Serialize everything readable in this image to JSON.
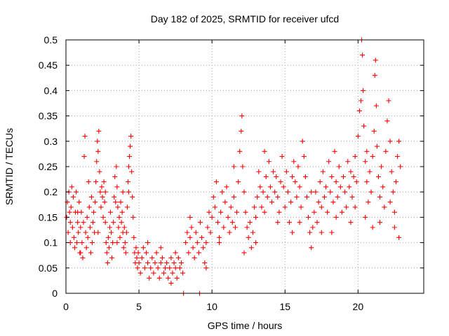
{
  "chart_data": {
    "type": "scatter",
    "title": "Day 182 of 2025, SRMTID for receiver ufcd",
    "xlabel": "GPS time / hours",
    "ylabel": "SRMTID / TECUs",
    "xlim": [
      0,
      24.5
    ],
    "ylim": [
      0,
      0.5
    ],
    "xticks": [
      0,
      5,
      10,
      15,
      20
    ],
    "xtick_labels": [
      "0",
      "5",
      "10",
      "15",
      "20"
    ],
    "yticks": [
      0,
      0.05,
      0.1,
      0.15,
      0.2,
      0.25,
      0.3,
      0.35,
      0.4,
      0.45,
      0.5
    ],
    "ytick_labels": [
      "0",
      "0.05",
      "0.1",
      "0.15",
      "0.2",
      "0.25",
      "0.3",
      "0.35",
      "0.4",
      "0.45",
      "0.5"
    ],
    "grid": true,
    "marker": "+",
    "color": "#ff0000",
    "series": [
      {
        "name": "SRMTID",
        "points": [
          [
            0.05,
            0.15
          ],
          [
            0.1,
            0.18
          ],
          [
            0.15,
            0.12
          ],
          [
            0.2,
            0.2
          ],
          [
            0.25,
            0.16
          ],
          [
            0.3,
            0.14
          ],
          [
            0.35,
            0.17
          ],
          [
            0.4,
            0.21
          ],
          [
            0.45,
            0.13
          ],
          [
            0.5,
            0.19
          ],
          [
            0.55,
            0.11
          ],
          [
            0.6,
            0.09
          ],
          [
            0.65,
            0.16
          ],
          [
            0.7,
            0.2
          ],
          [
            0.75,
            0.1
          ],
          [
            0.8,
            0.14
          ],
          [
            0.85,
            0.12
          ],
          [
            0.9,
            0.18
          ],
          [
            0.95,
            0.08
          ],
          [
            1.0,
            0.13
          ],
          [
            1.05,
            0.16
          ],
          [
            1.1,
            0.1
          ],
          [
            1.15,
            0.07
          ],
          [
            1.2,
            0.14
          ],
          [
            1.25,
            0.27
          ],
          [
            1.3,
            0.31
          ],
          [
            1.35,
            0.12
          ],
          [
            1.4,
            0.09
          ],
          [
            1.45,
            0.15
          ],
          [
            1.5,
            0.11
          ],
          [
            1.55,
            0.22
          ],
          [
            1.6,
            0.17
          ],
          [
            1.65,
            0.13
          ],
          [
            1.7,
            0.08
          ],
          [
            1.75,
            0.19
          ],
          [
            1.8,
            0.1
          ],
          [
            1.85,
            0.14
          ],
          [
            1.9,
            0.16
          ],
          [
            1.95,
            0.12
          ],
          [
            2.0,
            0.18
          ],
          [
            2.05,
            0.22
          ],
          [
            2.1,
            0.26
          ],
          [
            2.15,
            0.3
          ],
          [
            2.2,
            0.28
          ],
          [
            2.25,
            0.32
          ],
          [
            2.3,
            0.24
          ],
          [
            2.35,
            0.2
          ],
          [
            2.4,
            0.17
          ],
          [
            2.45,
            0.21
          ],
          [
            2.5,
            0.19
          ],
          [
            2.55,
            0.15
          ],
          [
            2.6,
            0.22
          ],
          [
            2.65,
            0.18
          ],
          [
            2.7,
            0.14
          ],
          [
            2.75,
            0.1
          ],
          [
            2.8,
            0.08
          ],
          [
            2.85,
            0.06
          ],
          [
            2.9,
            0.11
          ],
          [
            2.95,
            0.09
          ],
          [
            3.0,
            0.13
          ],
          [
            3.05,
            0.16
          ],
          [
            3.1,
            0.12
          ],
          [
            3.15,
            0.07
          ],
          [
            3.2,
            0.1
          ],
          [
            3.25,
            0.14
          ],
          [
            3.3,
            0.19
          ],
          [
            3.35,
            0.23
          ],
          [
            3.4,
            0.18
          ],
          [
            3.45,
            0.25
          ],
          [
            3.5,
            0.21
          ],
          [
            3.55,
            0.17
          ],
          [
            3.6,
            0.13
          ],
          [
            3.65,
            0.15
          ],
          [
            3.7,
            0.11
          ],
          [
            3.75,
            0.18
          ],
          [
            3.8,
            0.14
          ],
          [
            3.85,
            0.16
          ],
          [
            3.9,
            0.12
          ],
          [
            3.95,
            0.09
          ],
          [
            4.0,
            0.13
          ],
          [
            4.05,
            0.1
          ],
          [
            4.1,
            0.08
          ],
          [
            4.15,
            0.12
          ],
          [
            4.2,
            0.17
          ],
          [
            4.25,
            0.22
          ],
          [
            4.3,
            0.2
          ],
          [
            4.35,
            0.27
          ],
          [
            4.4,
            0.29
          ],
          [
            4.45,
            0.31
          ],
          [
            4.5,
            0.24
          ],
          [
            4.55,
            0.19
          ],
          [
            4.6,
            0.15
          ],
          [
            4.65,
            0.11
          ],
          [
            4.7,
            0.08
          ],
          [
            4.75,
            0.06
          ],
          [
            4.8,
            0.09
          ],
          [
            4.85,
            0.07
          ],
          [
            4.9,
            0.05
          ],
          [
            4.95,
            0.08
          ],
          [
            5.0,
            0.06
          ],
          [
            5.1,
            0.04
          ],
          [
            5.2,
            0.07
          ],
          [
            5.3,
            0.09
          ],
          [
            5.4,
            0.05
          ],
          [
            5.5,
            0.08
          ],
          [
            5.6,
            0.06
          ],
          [
            5.7,
            0.03
          ],
          [
            5.8,
            0.05
          ],
          [
            5.9,
            0.07
          ],
          [
            6.0,
            0.04
          ],
          [
            6.1,
            0.06
          ],
          [
            6.2,
            0.08
          ],
          [
            6.3,
            0.05
          ],
          [
            6.4,
            0.03
          ],
          [
            6.5,
            0.06
          ],
          [
            6.6,
            0.07
          ],
          [
            6.7,
            0.04
          ],
          [
            6.8,
            0.05
          ],
          [
            6.9,
            0.06
          ],
          [
            7.0,
            0.03
          ],
          [
            7.1,
            0.05
          ],
          [
            7.2,
            0.07
          ],
          [
            7.3,
            0.04
          ],
          [
            7.4,
            0.06
          ],
          [
            7.5,
            0.05
          ],
          [
            7.6,
            0.03
          ],
          [
            7.7,
            0.07
          ],
          [
            7.8,
            0.05
          ],
          [
            7.9,
            0.06
          ],
          [
            8.0,
            0.04
          ],
          [
            8.05,
            0.0
          ],
          [
            8.2,
            0.1
          ],
          [
            8.3,
            0.12
          ],
          [
            8.4,
            0.08
          ],
          [
            8.5,
            0.11
          ],
          [
            8.6,
            0.13
          ],
          [
            8.7,
            0.09
          ],
          [
            8.8,
            0.07
          ],
          [
            8.9,
            0.12
          ],
          [
            9.0,
            0.1
          ],
          [
            9.1,
            0.08
          ],
          [
            9.15,
            0.0
          ],
          [
            9.2,
            0.14
          ],
          [
            9.3,
            0.11
          ],
          [
            9.4,
            0.09
          ],
          [
            9.5,
            0.06
          ],
          [
            9.6,
            0.1
          ],
          [
            9.7,
            0.13
          ],
          [
            9.8,
            0.16
          ],
          [
            9.9,
            0.12
          ],
          [
            10.0,
            0.15
          ],
          [
            10.1,
            0.19
          ],
          [
            10.2,
            0.17
          ],
          [
            10.3,
            0.22
          ],
          [
            10.4,
            0.14
          ],
          [
            10.5,
            0.11
          ],
          [
            10.6,
            0.16
          ],
          [
            10.7,
            0.2
          ],
          [
            10.8,
            0.13
          ],
          [
            10.9,
            0.18
          ],
          [
            11.0,
            0.21
          ],
          [
            11.1,
            0.15
          ],
          [
            11.2,
            0.12
          ],
          [
            11.3,
            0.17
          ],
          [
            11.4,
            0.14
          ],
          [
            11.5,
            0.19
          ],
          [
            11.6,
            0.13
          ],
          [
            11.7,
            0.16
          ],
          [
            11.8,
            0.22
          ],
          [
            11.9,
            0.28
          ],
          [
            12.0,
            0.32
          ],
          [
            12.05,
            0.35
          ],
          [
            12.1,
            0.25
          ],
          [
            12.2,
            0.2
          ],
          [
            12.3,
            0.16
          ],
          [
            12.4,
            0.13
          ],
          [
            12.5,
            0.11
          ],
          [
            12.6,
            0.14
          ],
          [
            12.7,
            0.09
          ],
          [
            12.8,
            0.12
          ],
          [
            12.9,
            0.17
          ],
          [
            13.0,
            0.15
          ],
          [
            13.1,
            0.19
          ],
          [
            13.2,
            0.24
          ],
          [
            13.3,
            0.21
          ],
          [
            13.4,
            0.17
          ],
          [
            13.5,
            0.2
          ],
          [
            13.6,
            0.16
          ],
          [
            13.7,
            0.23
          ],
          [
            13.8,
            0.19
          ],
          [
            13.9,
            0.26
          ],
          [
            14.0,
            0.21
          ],
          [
            14.1,
            0.18
          ],
          [
            14.2,
            0.24
          ],
          [
            14.3,
            0.2
          ],
          [
            14.4,
            0.23
          ],
          [
            14.5,
            0.19
          ],
          [
            14.6,
            0.16
          ],
          [
            14.7,
            0.22
          ],
          [
            14.8,
            0.27
          ],
          [
            14.9,
            0.21
          ],
          [
            15.0,
            0.17
          ],
          [
            15.1,
            0.24
          ],
          [
            15.2,
            0.2
          ],
          [
            15.3,
            0.14
          ],
          [
            15.4,
            0.18
          ],
          [
            15.5,
            0.23
          ],
          [
            15.6,
            0.26
          ],
          [
            15.7,
            0.22
          ],
          [
            15.8,
            0.19
          ],
          [
            15.9,
            0.25
          ],
          [
            16.0,
            0.21
          ],
          [
            16.1,
            0.17
          ],
          [
            16.2,
            0.3
          ],
          [
            16.3,
            0.27
          ],
          [
            16.4,
            0.23
          ],
          [
            16.5,
            0.19
          ],
          [
            16.6,
            0.15
          ],
          [
            16.7,
            0.12
          ],
          [
            16.8,
            0.09
          ],
          [
            16.9,
            0.13
          ],
          [
            17.0,
            0.16
          ],
          [
            17.1,
            0.2
          ],
          [
            17.2,
            0.14
          ],
          [
            17.3,
            0.18
          ],
          [
            17.4,
            0.22
          ],
          [
            17.5,
            0.17
          ],
          [
            17.6,
            0.24
          ],
          [
            17.7,
            0.19
          ],
          [
            17.8,
            0.21
          ],
          [
            17.9,
            0.16
          ],
          [
            18.0,
            0.26
          ],
          [
            18.1,
            0.2
          ],
          [
            18.2,
            0.23
          ],
          [
            18.3,
            0.18
          ],
          [
            18.4,
            0.28
          ],
          [
            18.5,
            0.22
          ],
          [
            18.6,
            0.19
          ],
          [
            18.7,
            0.25
          ],
          [
            18.8,
            0.21
          ],
          [
            18.9,
            0.16
          ],
          [
            19.0,
            0.23
          ],
          [
            19.1,
            0.2
          ],
          [
            19.2,
            0.17
          ],
          [
            19.3,
            0.26
          ],
          [
            19.4,
            0.21
          ],
          [
            19.5,
            0.14
          ],
          [
            19.6,
            0.19
          ],
          [
            19.7,
            0.23
          ],
          [
            19.8,
            0.27
          ],
          [
            19.9,
            0.22
          ],
          [
            20.0,
            0.31
          ],
          [
            20.1,
            0.36
          ],
          [
            20.2,
            0.38
          ],
          [
            20.25,
            0.5
          ],
          [
            20.3,
            0.47
          ],
          [
            20.35,
            0.4
          ],
          [
            20.4,
            0.33
          ],
          [
            20.5,
            0.26
          ],
          [
            20.6,
            0.22
          ],
          [
            20.7,
            0.18
          ],
          [
            20.8,
            0.24
          ],
          [
            20.9,
            0.2
          ],
          [
            21.0,
            0.27
          ],
          [
            21.1,
            0.32
          ],
          [
            21.15,
            0.43
          ],
          [
            21.2,
            0.46
          ],
          [
            21.25,
            0.37
          ],
          [
            21.3,
            0.29
          ],
          [
            21.4,
            0.23
          ],
          [
            21.5,
            0.19
          ],
          [
            21.6,
            0.25
          ],
          [
            21.7,
            0.21
          ],
          [
            21.8,
            0.17
          ],
          [
            21.9,
            0.28
          ],
          [
            22.0,
            0.34
          ],
          [
            22.1,
            0.38
          ],
          [
            22.2,
            0.3
          ],
          [
            22.3,
            0.24
          ],
          [
            22.4,
            0.2
          ],
          [
            22.5,
            0.16
          ],
          [
            22.6,
            0.22
          ],
          [
            22.7,
            0.27
          ],
          [
            22.8,
            0.3
          ],
          [
            22.9,
            0.25
          ],
          [
            0.3,
            0.1
          ],
          [
            1.0,
            0.08
          ],
          [
            2.7,
            0.2
          ],
          [
            3.5,
            0.1
          ],
          [
            4.3,
            0.25
          ],
          [
            6.5,
            0.09
          ],
          [
            7.5,
            0.08
          ],
          [
            8.5,
            0.15
          ],
          [
            10.5,
            0.1
          ],
          [
            11.5,
            0.25
          ],
          [
            13.0,
            0.1
          ],
          [
            14.5,
            0.14
          ],
          [
            15.5,
            0.12
          ],
          [
            16.8,
            0.2
          ],
          [
            17.5,
            0.12
          ],
          [
            18.5,
            0.15
          ],
          [
            19.5,
            0.24
          ],
          [
            20.5,
            0.15
          ],
          [
            21.5,
            0.14
          ],
          [
            22.5,
            0.13
          ],
          [
            0.8,
            0.16
          ],
          [
            2.2,
            0.12
          ],
          [
            3.9,
            0.2
          ],
          [
            5.6,
            0.1
          ],
          [
            7.2,
            0.02
          ],
          [
            9.6,
            0.05
          ],
          [
            12.2,
            0.08
          ],
          [
            13.6,
            0.28
          ],
          [
            16.0,
            0.14
          ],
          [
            18.2,
            0.12
          ],
          [
            19.8,
            0.17
          ],
          [
            21.0,
            0.13
          ],
          [
            22.2,
            0.18
          ],
          [
            22.8,
            0.11
          ],
          [
            20.6,
            0.28
          ]
        ]
      }
    ]
  }
}
